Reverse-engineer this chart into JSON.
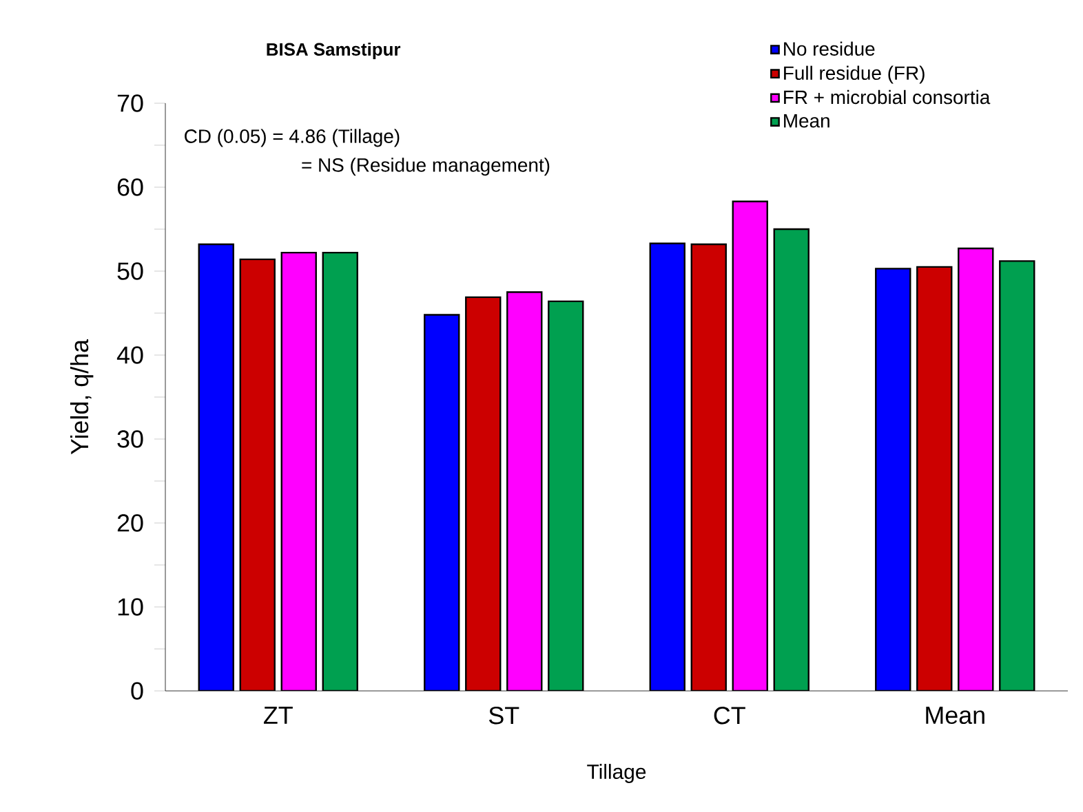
{
  "chart_data": {
    "type": "bar",
    "title": "BISA Samstipur",
    "xlabel": "Tillage",
    "ylabel": "Yield, q/ha",
    "categories": [
      "ZT",
      "ST",
      "CT",
      "Mean"
    ],
    "series": [
      {
        "name": "No residue",
        "color": "#0000ff",
        "values": [
          53.2,
          44.8,
          53.3,
          50.3
        ]
      },
      {
        "name": "Full residue (FR)",
        "color": "#cc0000",
        "values": [
          51.4,
          46.9,
          53.2,
          50.5
        ]
      },
      {
        "name": "FR + microbial consortia",
        "color": "#ff00ff",
        "values": [
          52.2,
          47.5,
          58.3,
          52.7
        ]
      },
      {
        "name": "Mean",
        "color": "#00a050",
        "values": [
          52.2,
          46.4,
          55.0,
          51.2
        ]
      }
    ],
    "ylim": [
      0,
      70
    ],
    "yticks": [
      0,
      10,
      20,
      30,
      40,
      50,
      60,
      70
    ],
    "annotations": [
      "CD (0.05) = 4.86 (Tillage)",
      "= NS (Residue management)"
    ],
    "legend": "top right",
    "grid": false
  }
}
